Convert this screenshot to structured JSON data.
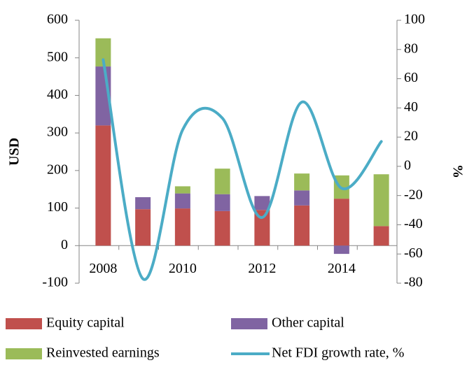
{
  "chart_data": {
    "type": "bar",
    "stacked": true,
    "categories": [
      "2008",
      null,
      "2010",
      null,
      "2012",
      null,
      "2014",
      null
    ],
    "series": [
      {
        "name": "Equity capital",
        "color": "#c0504d",
        "values": [
          320,
          97,
          99,
          92,
          95,
          107,
          125,
          52
        ]
      },
      {
        "name": "Other capital",
        "color": "#8064a2",
        "values": [
          157,
          32,
          40,
          45,
          37,
          40,
          -22,
          0
        ]
      },
      {
        "name": "Reinvested earnings",
        "color": "#9bbb59",
        "values": [
          75,
          0,
          19,
          68,
          0,
          45,
          62,
          138
        ]
      },
      {
        "name": "Net FDI growth rate, %",
        "color": "#4bacc6",
        "type": "line",
        "axis": "y2",
        "values": [
          73,
          -77,
          25,
          33,
          -35,
          44,
          -15,
          17
        ]
      }
    ],
    "ylabel": "USD",
    "y2label": "%",
    "ylim": [
      -100,
      600
    ],
    "yticks": [
      -100,
      0,
      100,
      200,
      300,
      400,
      500,
      600
    ],
    "y2lim": [
      -80,
      100
    ],
    "y2ticks": [
      -80,
      -60,
      -40,
      -20,
      0,
      20,
      40,
      60,
      80,
      100
    ],
    "legend": "bottom"
  }
}
